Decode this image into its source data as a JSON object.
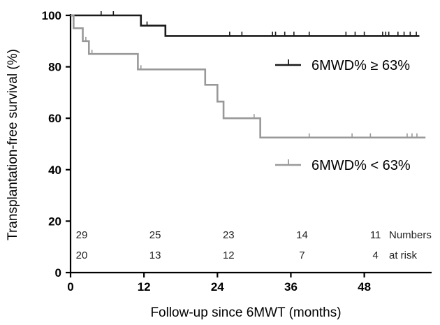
{
  "chart_data": {
    "type": "line",
    "title": "",
    "xlabel": "Follow-up since 6MWT (months)",
    "ylabel": "Transplantation-free survival (%)",
    "xlim": [
      0,
      59
    ],
    "ylim": [
      0,
      100
    ],
    "xticks": [
      0,
      12,
      24,
      36,
      48
    ],
    "yticks": [
      0,
      20,
      40,
      60,
      80,
      100
    ],
    "grid": false,
    "legend_position": "right",
    "series": [
      {
        "name": "6MWD% ≥ 63%",
        "color": "#1a1a1a",
        "steps": [
          [
            0,
            100
          ],
          [
            11.5,
            96
          ],
          [
            15.5,
            92
          ],
          [
            57,
            92
          ]
        ],
        "censored": [
          [
            5,
            100
          ],
          [
            7,
            100
          ],
          [
            12.5,
            96
          ],
          [
            26,
            92
          ],
          [
            28,
            92
          ],
          [
            33,
            92
          ],
          [
            33.5,
            92
          ],
          [
            35,
            92
          ],
          [
            36.5,
            92
          ],
          [
            39,
            92
          ],
          [
            45,
            92
          ],
          [
            46.5,
            92
          ],
          [
            48,
            92
          ],
          [
            51,
            92
          ],
          [
            51.5,
            92
          ],
          [
            52,
            92
          ],
          [
            53.5,
            92
          ],
          [
            54.5,
            92
          ],
          [
            55.5,
            92
          ],
          [
            56.5,
            92
          ]
        ]
      },
      {
        "name": "6MWD% < 63%",
        "color": "#999999",
        "steps": [
          [
            0,
            100
          ],
          [
            0.5,
            95
          ],
          [
            2,
            90
          ],
          [
            3,
            85
          ],
          [
            11,
            79
          ],
          [
            22,
            73
          ],
          [
            24,
            66.5
          ],
          [
            25,
            60
          ],
          [
            31,
            52.5
          ],
          [
            58,
            52.5
          ]
        ],
        "censored": [
          [
            2.5,
            90
          ],
          [
            3.5,
            85
          ],
          [
            11.5,
            79
          ],
          [
            30,
            60
          ],
          [
            39,
            52.5
          ],
          [
            46,
            52.5
          ],
          [
            49,
            52.5
          ],
          [
            55,
            52.5
          ],
          [
            55.8,
            52.5
          ],
          [
            56.6,
            52.5
          ]
        ]
      }
    ],
    "numbers_at_risk": {
      "label_line1": "Numbers",
      "label_line2": "at risk",
      "x": [
        0,
        12,
        24,
        36,
        48
      ],
      "group_high": [
        "29",
        "25",
        "23",
        "14",
        "11"
      ],
      "group_low": [
        "20",
        "13",
        "12",
        "7",
        "4"
      ]
    }
  }
}
